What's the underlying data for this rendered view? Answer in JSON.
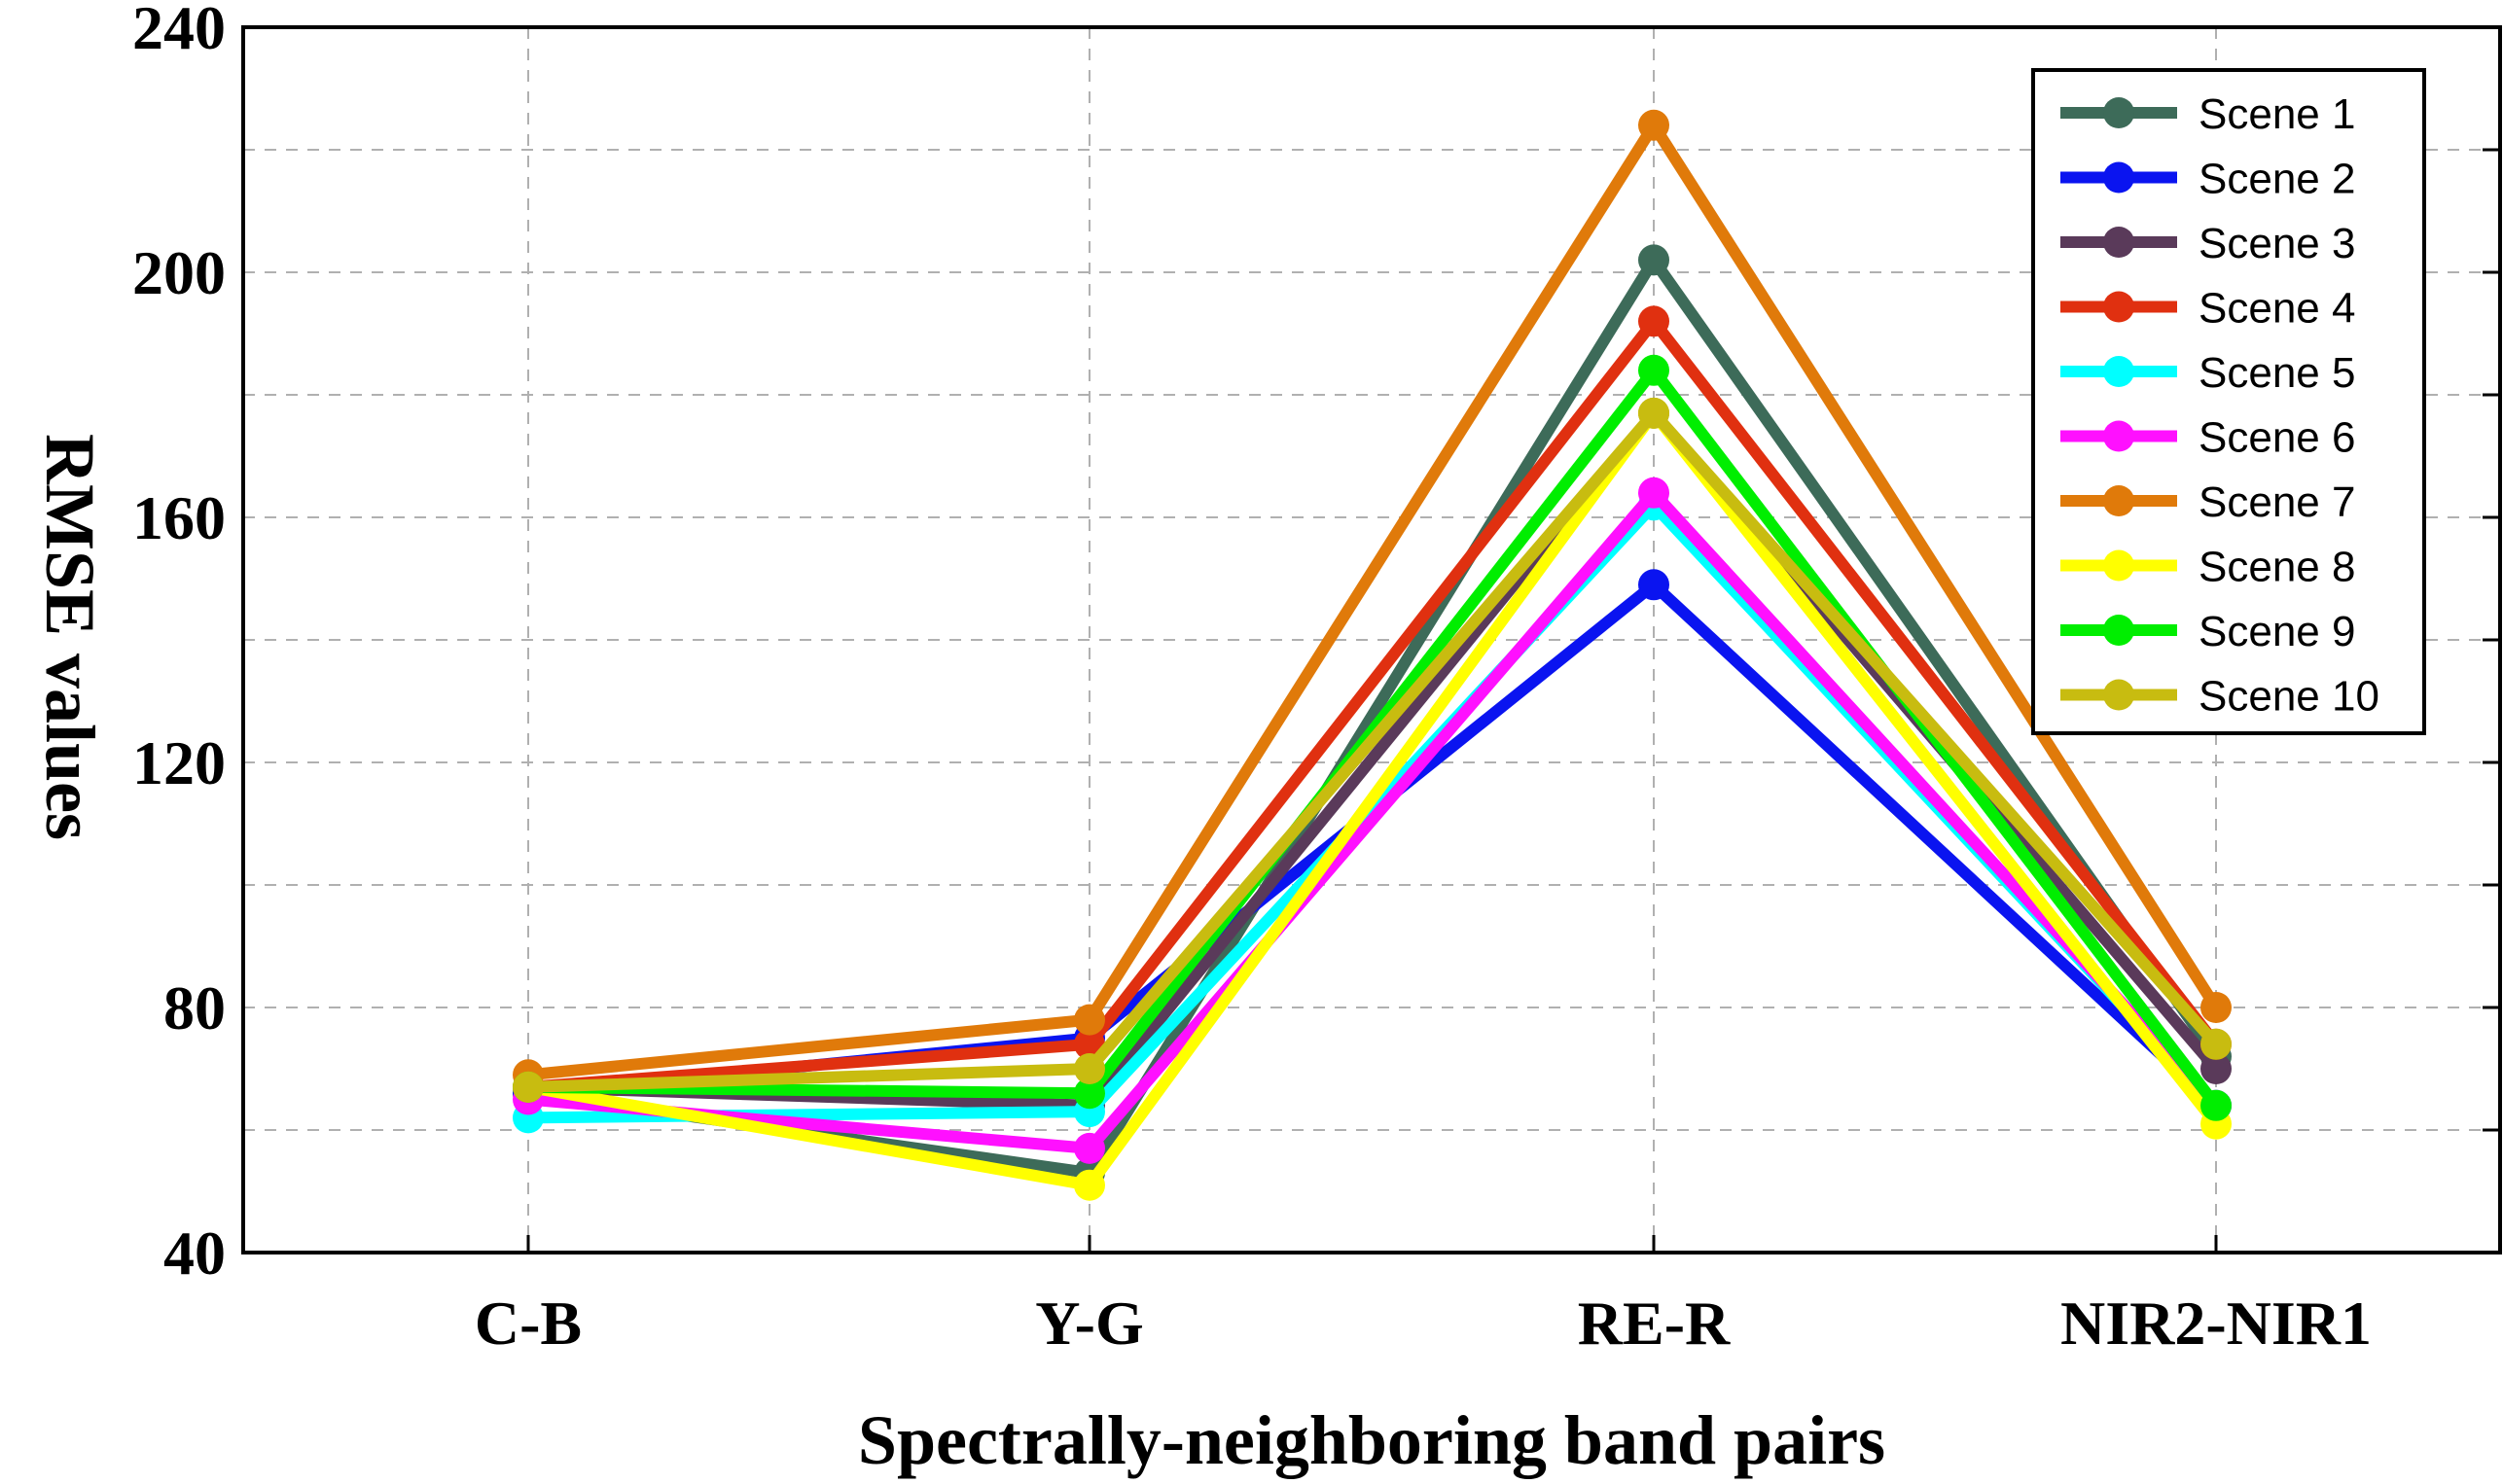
{
  "chart_data": {
    "type": "line",
    "title": "",
    "xlabel": "Spectrally-neighboring band pairs",
    "ylabel": "RMSE values",
    "categories": [
      "C-B",
      "Y-G",
      "RE-R",
      "NIR2-NIR1"
    ],
    "ylim": [
      40,
      240
    ],
    "yticks": [
      40,
      80,
      120,
      160,
      200,
      240
    ],
    "yticks_labels": [
      "40",
      "80",
      "120",
      "160",
      "200",
      "240"
    ],
    "grid": true,
    "legend_position": "top-right",
    "series": [
      {
        "name": "Scene 1",
        "color": "#3d6b59",
        "values": [
          66,
          53,
          202,
          72
        ]
      },
      {
        "name": "Scene 2",
        "color": "#0a14f0",
        "values": [
          66,
          75,
          149,
          64
        ]
      },
      {
        "name": "Scene 3",
        "color": "#5a3a5a",
        "values": [
          67,
          64,
          177,
          70
        ]
      },
      {
        "name": "Scene 4",
        "color": "#e03010",
        "values": [
          67,
          74,
          192,
          74
        ]
      },
      {
        "name": "Scene 5",
        "color": "#00ffff",
        "values": [
          62,
          63,
          162,
          64
        ]
      },
      {
        "name": "Scene 6",
        "color": "#ff10ff",
        "values": [
          65,
          57,
          164,
          64
        ]
      },
      {
        "name": "Scene 7",
        "color": "#e07a0a",
        "values": [
          69,
          78,
          224,
          80
        ]
      },
      {
        "name": "Scene 8",
        "color": "#ffff00",
        "values": [
          67,
          51,
          177,
          61
        ]
      },
      {
        "name": "Scene 9",
        "color": "#00ee00",
        "values": [
          67,
          66,
          184,
          64
        ]
      },
      {
        "name": "Scene 10",
        "color": "#c8bc10",
        "values": [
          67,
          70,
          177,
          74
        ]
      }
    ]
  }
}
